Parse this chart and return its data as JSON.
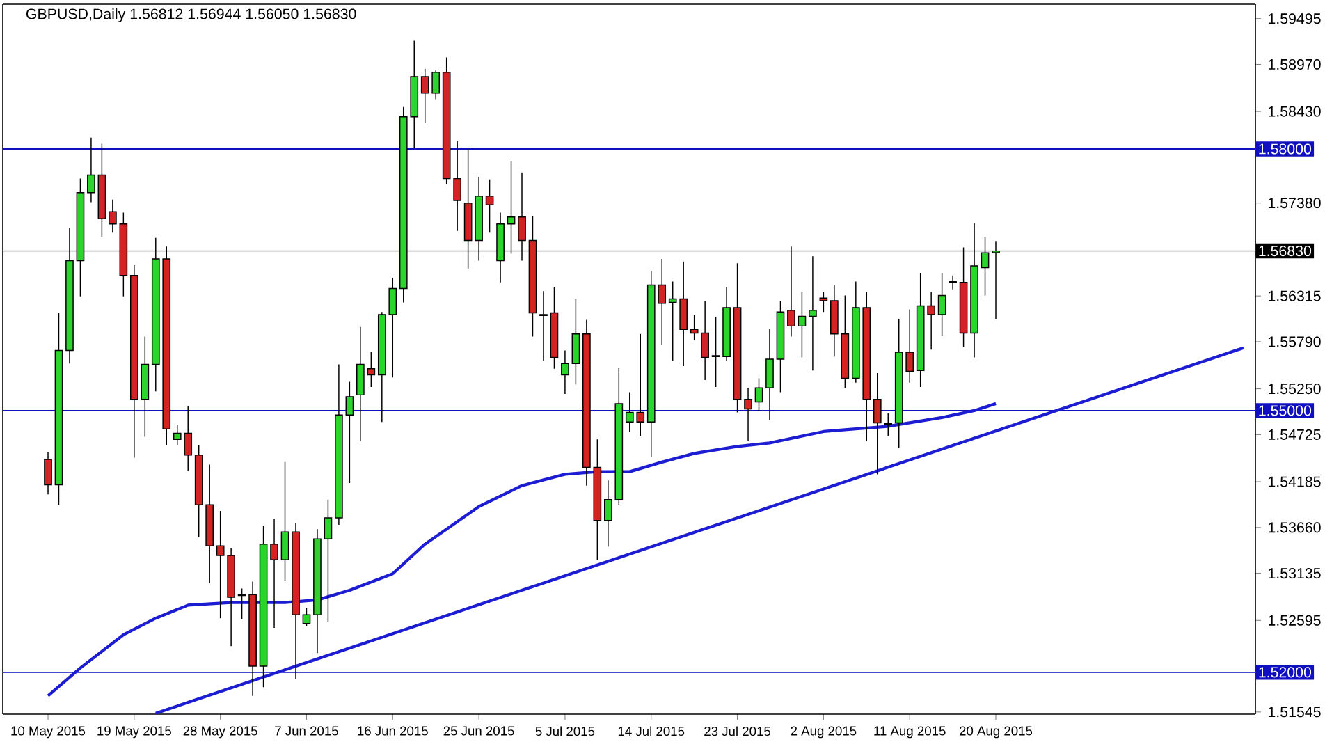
{
  "chart_data": {
    "type": "candlestick",
    "title": "GBPUSD,Daily 1.56812 1.56944 1.56050 1.56830",
    "categories": [
      "10 May 2015",
      null,
      null,
      null,
      null,
      null,
      null,
      null,
      "19 May 2015",
      null,
      null,
      null,
      null,
      null,
      null,
      null,
      "28 May 2015",
      null,
      null,
      null,
      null,
      null,
      null,
      null,
      "7 Jun 2015",
      null,
      null,
      null,
      null,
      null,
      null,
      null,
      "16 Jun 2015",
      null,
      null,
      null,
      null,
      null,
      null,
      null,
      "25 Jun 2015",
      null,
      null,
      null,
      null,
      null,
      null,
      null,
      "5 Jul 2015",
      null,
      null,
      null,
      null,
      null,
      null,
      null,
      "14 Jul 2015",
      null,
      null,
      null,
      null,
      null,
      null,
      null,
      "23 Jul 2015",
      null,
      null,
      null,
      null,
      null,
      null,
      null,
      "2 Aug 2015",
      null,
      null,
      null,
      null,
      null,
      null,
      null,
      "11 Aug 2015",
      null,
      null,
      null,
      null,
      null,
      null,
      null,
      "20 Aug 2015",
      null,
      null,
      null,
      null,
      null,
      null,
      null,
      null,
      null,
      null,
      null,
      null,
      null,
      null,
      null,
      null,
      null,
      null,
      null,
      null,
      null,
      null,
      null
    ],
    "ohlc": [
      [
        1.5444,
        1.5452,
        1.5404,
        1.5415
      ],
      [
        1.5415,
        1.5612,
        1.5392,
        1.5569
      ],
      [
        1.5569,
        1.5709,
        1.5554,
        1.5672
      ],
      [
        1.5672,
        1.5766,
        1.5631,
        1.575
      ],
      [
        1.575,
        1.5813,
        1.5739,
        1.577
      ],
      [
        1.577,
        1.5806,
        1.5699,
        1.572
      ],
      [
        1.5728,
        1.5742,
        1.5704,
        1.5714
      ],
      [
        1.5714,
        1.5727,
        1.5631,
        1.5655
      ],
      [
        1.5655,
        1.5667,
        1.5446,
        1.5513
      ],
      [
        1.5513,
        1.5585,
        1.547,
        1.5553
      ],
      [
        1.5553,
        1.5698,
        1.5522,
        1.5674
      ],
      [
        1.5674,
        1.5688,
        1.546,
        1.5479
      ],
      [
        1.5467,
        1.5484,
        1.546,
        1.5474
      ],
      [
        1.5474,
        1.5505,
        1.5431,
        1.5449
      ],
      [
        1.5449,
        1.546,
        1.5355,
        1.5392
      ],
      [
        1.5392,
        1.5438,
        1.5302,
        1.5345
      ],
      [
        1.5345,
        1.5385,
        1.5262,
        1.5334
      ],
      [
        1.5334,
        1.5342,
        1.523,
        1.5286
      ],
      [
        1.5289,
        1.5296,
        1.5261,
        1.5288
      ],
      [
        1.5289,
        1.5304,
        1.5173,
        1.5207
      ],
      [
        1.5207,
        1.5368,
        1.5183,
        1.5347
      ],
      [
        1.5347,
        1.5376,
        1.5251,
        1.5329
      ],
      [
        1.5329,
        1.5441,
        1.5305,
        1.5361
      ],
      [
        1.5361,
        1.5371,
        1.5192,
        1.5266
      ],
      [
        1.5256,
        1.5274,
        1.5253,
        1.5266
      ],
      [
        1.5266,
        1.5364,
        1.5222,
        1.5353
      ],
      [
        1.5353,
        1.5398,
        1.5258,
        1.5377
      ],
      [
        1.5377,
        1.5553,
        1.5369,
        1.5495
      ],
      [
        1.5495,
        1.5533,
        1.5417,
        1.5516
      ],
      [
        1.5518,
        1.5596,
        1.5465,
        1.5553
      ],
      [
        1.5548,
        1.5567,
        1.5527,
        1.5541
      ],
      [
        1.5541,
        1.5613,
        1.5487,
        1.561
      ],
      [
        1.561,
        1.5652,
        1.5538,
        1.564
      ],
      [
        1.564,
        1.5848,
        1.5624,
        1.5837
      ],
      [
        1.5837,
        1.5924,
        1.5801,
        1.5883
      ],
      [
        1.5883,
        1.5892,
        1.583,
        1.5864
      ],
      [
        1.5864,
        1.589,
        1.5857,
        1.5888
      ],
      [
        1.5888,
        1.5905,
        1.576,
        1.5766
      ],
      [
        1.5766,
        1.5809,
        1.5706,
        1.5741
      ],
      [
        1.5738,
        1.58,
        1.5663,
        1.5695
      ],
      [
        1.5695,
        1.5768,
        1.5672,
        1.5746
      ],
      [
        1.5746,
        1.5765,
        1.5704,
        1.5736
      ],
      [
        1.5672,
        1.5727,
        1.5647,
        1.5714
      ],
      [
        1.5714,
        1.5786,
        1.568,
        1.5722
      ],
      [
        1.5722,
        1.5773,
        1.5672,
        1.5695
      ],
      [
        1.5695,
        1.5723,
        1.5585,
        1.5612
      ],
      [
        1.561,
        1.5637,
        1.5557,
        1.5609
      ],
      [
        1.5612,
        1.5642,
        1.5548,
        1.5561
      ],
      [
        1.5541,
        1.5569,
        1.5519,
        1.5554
      ],
      [
        1.5554,
        1.5628,
        1.553,
        1.5588
      ],
      [
        1.5588,
        1.5604,
        1.5414,
        1.5435
      ],
      [
        1.5435,
        1.5467,
        1.5329,
        1.5374
      ],
      [
        1.5374,
        1.542,
        1.5344,
        1.5398
      ],
      [
        1.5398,
        1.5549,
        1.5392,
        1.5508
      ],
      [
        1.5487,
        1.5521,
        1.5476,
        1.5498
      ],
      [
        1.5498,
        1.5588,
        1.5471,
        1.5487
      ],
      [
        1.5487,
        1.566,
        1.5447,
        1.5644
      ],
      [
        1.5644,
        1.5674,
        1.5575,
        1.5623
      ],
      [
        1.5624,
        1.5648,
        1.5557,
        1.5628
      ],
      [
        1.5628,
        1.5671,
        1.5551,
        1.5593
      ],
      [
        1.5593,
        1.561,
        1.5581,
        1.5589
      ],
      [
        1.5589,
        1.5626,
        1.5535,
        1.5561
      ],
      [
        1.5562,
        1.5607,
        1.5527,
        1.5563
      ],
      [
        1.5562,
        1.5642,
        1.5557,
        1.5618
      ],
      [
        1.5618,
        1.5669,
        1.5498,
        1.5513
      ],
      [
        1.5513,
        1.5526,
        1.5465,
        1.5502
      ],
      [
        1.551,
        1.5537,
        1.55,
        1.5526
      ],
      [
        1.5526,
        1.5594,
        1.5489,
        1.5559
      ],
      [
        1.5559,
        1.5626,
        1.5521,
        1.5613
      ],
      [
        1.5615,
        1.5688,
        1.5585,
        1.5597
      ],
      [
        1.5597,
        1.5636,
        1.5561,
        1.5608
      ],
      [
        1.5608,
        1.5677,
        1.5546,
        1.5615
      ],
      [
        1.5629,
        1.5636,
        1.5613,
        1.5626
      ],
      [
        1.5626,
        1.5644,
        1.5562,
        1.5588
      ],
      [
        1.5588,
        1.5632,
        1.5526,
        1.5537
      ],
      [
        1.5537,
        1.5648,
        1.5532,
        1.5618
      ],
      [
        1.5618,
        1.5636,
        1.5465,
        1.5513
      ],
      [
        1.5513,
        1.5543,
        1.5427,
        1.5486
      ],
      [
        1.5484,
        1.5497,
        1.5471,
        1.5485
      ],
      [
        1.5486,
        1.5605,
        1.5457,
        1.5567
      ],
      [
        1.5567,
        1.5616,
        1.5532,
        1.5545
      ],
      [
        1.5546,
        1.5658,
        1.5527,
        1.562
      ],
      [
        1.562,
        1.5636,
        1.557,
        1.561
      ],
      [
        1.561,
        1.5658,
        1.5586,
        1.5632
      ],
      [
        1.5647,
        1.5655,
        1.5639,
        1.5648
      ],
      [
        1.5647,
        1.5687,
        1.5573,
        1.5589
      ],
      [
        1.5589,
        1.5715,
        1.5561,
        1.5666
      ],
      [
        1.5664,
        1.5699,
        1.5632,
        1.5681
      ],
      [
        1.56812,
        1.56944,
        1.5605,
        1.5683
      ],
      null,
      null,
      null,
      null,
      null,
      null,
      null,
      null,
      null,
      null,
      null,
      null,
      null,
      null,
      null,
      null,
      null,
      null,
      null,
      null,
      null,
      null,
      null
    ],
    "colors": [
      "#d42323",
      "#2bd52b",
      "#2bd52b",
      "#2bd52b",
      "#2bd52b",
      "#d42323",
      "#d42323",
      "#d42323",
      "#d42323",
      "#2bd52b",
      "#2bd52b",
      "#d42323",
      "#2bd52b",
      "#d42323",
      "#d42323",
      "#d42323",
      "#d42323",
      "#d42323",
      "#d42323",
      "#d42323",
      "#2bd52b",
      "#d42323",
      "#2bd52b",
      "#d42323",
      "#2bd52b",
      "#2bd52b",
      "#2bd52b",
      "#2bd52b",
      "#2bd52b",
      "#2bd52b",
      "#d42323",
      "#2bd52b",
      "#2bd52b",
      "#2bd52b",
      "#2bd52b",
      "#d42323",
      "#2bd52b",
      "#d42323",
      "#d42323",
      "#d42323",
      "#2bd52b",
      "#d42323",
      "#2bd52b",
      "#2bd52b",
      "#d42323",
      "#d42323",
      "#d42323",
      "#d42323",
      "#2bd52b",
      "#2bd52b",
      "#d42323",
      "#d42323",
      "#2bd52b",
      "#2bd52b",
      "#2bd52b",
      "#d42323",
      "#2bd52b",
      "#d42323",
      "#2bd52b",
      "#d42323",
      "#d42323",
      "#d42323",
      "#2bd52b",
      "#2bd52b",
      "#d42323",
      "#d42323",
      "#2bd52b",
      "#2bd52b",
      "#2bd52b",
      "#d42323",
      "#2bd52b",
      "#2bd52b",
      "#d42323",
      "#d42323",
      "#d42323",
      "#2bd52b",
      "#d42323",
      "#d42323",
      "#2bd52b",
      "#2bd52b",
      "#d42323",
      "#2bd52b",
      "#d42323",
      "#2bd52b",
      "#2bd52b",
      "#d42323",
      "#2bd52b",
      "#2bd52b",
      "#2bd52b",
      null,
      null,
      null,
      null,
      null,
      null,
      null,
      null,
      null,
      null,
      null,
      null,
      null,
      null,
      null,
      null,
      null,
      null,
      null,
      null,
      null,
      null,
      null
    ],
    "series": [
      {
        "type": "line",
        "color": "#1c1cd2",
        "values": [
          1.5173,
          null,
          null,
          1.5205,
          null,
          null,
          null,
          1.5243,
          null,
          null,
          1.5262,
          null,
          null,
          1.5277,
          null,
          null,
          null,
          1.528,
          null,
          null,
          null,
          null,
          1.528,
          null,
          null,
          1.5283,
          null,
          null,
          1.5294,
          null,
          null,
          null,
          1.5313,
          null,
          null,
          1.5347,
          null,
          1.5364,
          null,
          null,
          1.539,
          null,
          null,
          null,
          1.5414,
          null,
          null,
          null,
          1.5427,
          null,
          null,
          1.543,
          null,
          null,
          1.543,
          null,
          null,
          1.5441,
          null,
          null,
          1.5451,
          null,
          null,
          null,
          1.5459,
          null,
          null,
          1.5463,
          null,
          null,
          null,
          null,
          1.5476,
          null,
          null,
          1.5479,
          null,
          null,
          1.5482,
          null,
          null,
          null,
          null,
          1.5492,
          null,
          null,
          1.55,
          null,
          1.5508,
          null,
          null,
          null,
          null,
          null,
          null,
          null,
          null,
          null,
          null,
          null,
          null,
          null,
          null,
          null,
          null,
          null,
          null,
          null,
          null,
          null,
          null,
          null
        ]
      },
      {
        "type": "line",
        "color": "#1c1cd2",
        "values": [
          null,
          null,
          null,
          null,
          null,
          null,
          null,
          null,
          null,
          null,
          1.5153,
          null,
          null,
          null,
          null,
          null,
          null,
          null,
          null,
          null,
          null,
          null,
          null,
          null,
          null,
          null,
          null,
          null,
          null,
          null,
          null,
          null,
          null,
          null,
          null,
          null,
          null,
          null,
          null,
          null,
          null,
          null,
          null,
          null,
          null,
          null,
          null,
          null,
          null,
          null,
          null,
          null,
          null,
          null,
          null,
          null,
          null,
          null,
          null,
          null,
          null,
          null,
          null,
          null,
          null,
          null,
          null,
          null,
          null,
          null,
          null,
          null,
          null,
          null,
          null,
          null,
          null,
          null,
          null,
          null,
          null,
          null,
          null,
          null,
          null,
          null,
          null,
          null,
          null,
          null,
          null,
          null,
          null,
          null,
          null,
          null,
          null,
          null,
          null,
          null,
          null,
          null,
          null,
          null,
          null,
          null,
          null,
          null,
          null,
          null,
          null,
          1.5572
        ]
      }
    ],
    "ylim": [
      1.5152,
      1.5966
    ],
    "yticks": [
      {
        "value": 1.59495,
        "label": "1.59495"
      },
      {
        "value": 1.5897,
        "label": "1.58970"
      },
      {
        "value": 1.5843,
        "label": "1.58430"
      },
      {
        "value": 1.5738,
        "label": "1.57380"
      },
      {
        "value": 1.56315,
        "label": "1.56315"
      },
      {
        "value": 1.5579,
        "label": "1.55790"
      },
      {
        "value": 1.5525,
        "label": "1.55250"
      },
      {
        "value": 1.54725,
        "label": "1.54725"
      },
      {
        "value": 1.54185,
        "label": "1.54185"
      },
      {
        "value": 1.5366,
        "label": "1.53660"
      },
      {
        "value": 1.53135,
        "label": "1.53135"
      },
      {
        "value": 1.52595,
        "label": "1.52595"
      },
      {
        "value": 1.51545,
        "label": "1.51545"
      }
    ],
    "ref_lines": [
      {
        "axis": "y",
        "value": 1.58,
        "label": "1.58000",
        "color": "#1010c0"
      },
      {
        "axis": "y",
        "value": 1.5683,
        "label": "1.56830",
        "color": "#b4b4b4"
      },
      {
        "axis": "y",
        "value": 1.55,
        "label": "1.55000",
        "color": "#1010c0"
      },
      {
        "axis": "y",
        "value": 1.52,
        "label": "1.52000",
        "color": "#1010c0"
      }
    ]
  }
}
